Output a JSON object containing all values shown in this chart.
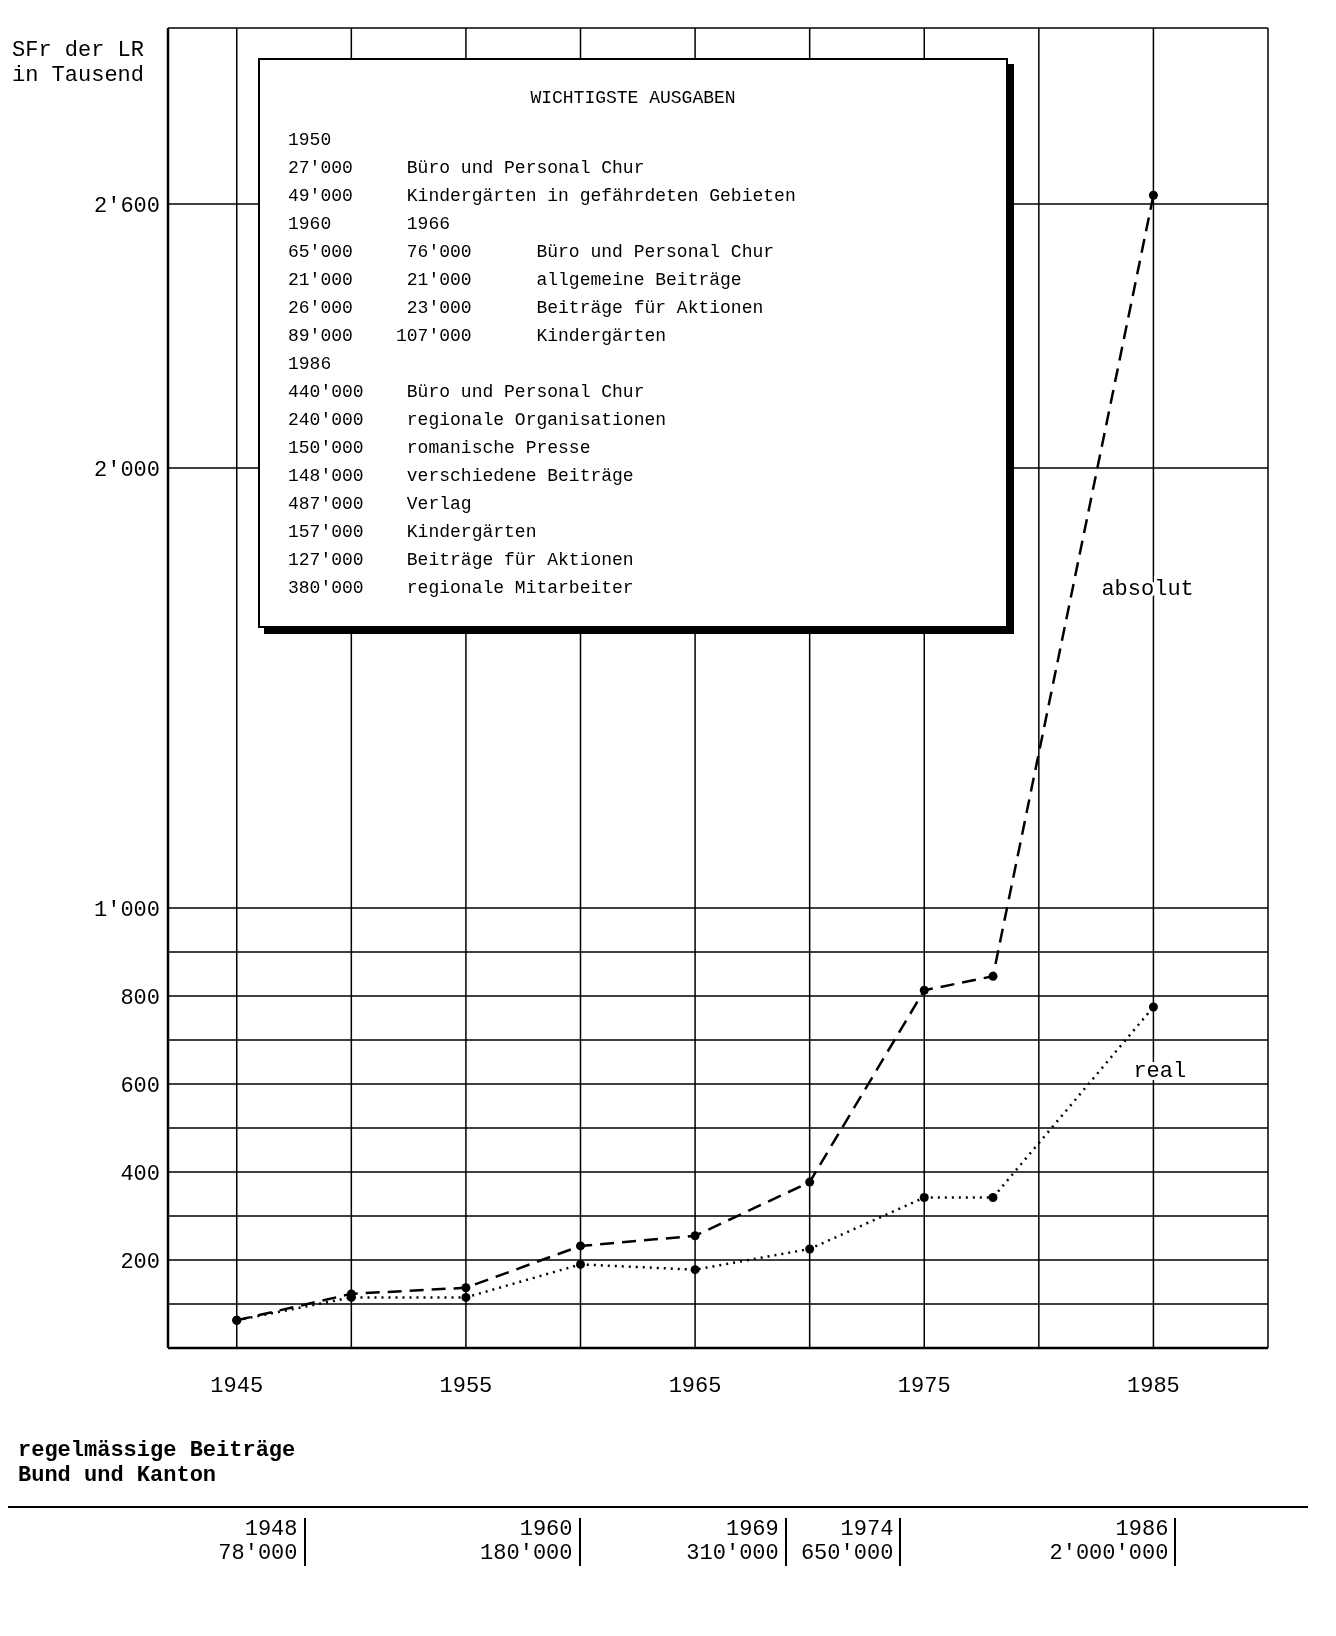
{
  "chart_data": {
    "type": "line",
    "ylabel": "SFr der LR\nin Tausend",
    "xlabel": "regelmässige Beiträge\nBund und Kanton",
    "x": [
      1945,
      1950,
      1955,
      1960,
      1965,
      1970,
      1975,
      1978,
      1985
    ],
    "series": [
      {
        "name": "absolut",
        "color": "#000000",
        "line_style": "dashed",
        "values": [
          63,
          123,
          137,
          232,
          255,
          377,
          813,
          845,
          2620
        ]
      },
      {
        "name": "real",
        "color": "#000000",
        "line_style": "dotted",
        "values": [
          63,
          115,
          115,
          190,
          178,
          225,
          342,
          342,
          775
        ]
      }
    ],
    "xlim": [
      1942,
      1990
    ],
    "xticks": [
      1945,
      {
        "value": 1950,
        "label": null
      },
      1955,
      {
        "value": 1960,
        "label": null
      },
      1965,
      {
        "value": 1970,
        "label": null
      },
      1975,
      {
        "value": 1980,
        "label": null
      },
      1985
    ],
    "ylim": [
      0,
      3000
    ],
    "yticks": [
      {
        "value": 100,
        "label": null
      },
      {
        "value": 200,
        "label": "200"
      },
      {
        "value": 300,
        "label": null
      },
      {
        "value": 400,
        "label": "400"
      },
      {
        "value": 500,
        "label": null
      },
      {
        "value": 600,
        "label": "600"
      },
      {
        "value": 700,
        "label": null
      },
      {
        "value": 800,
        "label": "800"
      },
      {
        "value": 900,
        "label": null
      },
      {
        "value": 1000,
        "label": "1'000"
      },
      {
        "value": 2000,
        "label": "2'000"
      },
      {
        "value": 2600,
        "label": "2'600"
      }
    ],
    "grid": true,
    "marker": "circle",
    "ref_lines": [
      {
        "axis": "x",
        "value": 1948,
        "label": "1948\n78'000"
      },
      {
        "axis": "x",
        "value": 1960,
        "label": "1960\n180'000"
      },
      {
        "axis": "x",
        "value": 1969,
        "label": "1969\n310'000"
      },
      {
        "axis": "x",
        "value": 1974,
        "label": "1974\n650'000"
      },
      {
        "axis": "x",
        "value": 1986,
        "label": "1986\n2'000'000"
      }
    ],
    "annotations": [
      "WICHTIGSTE AUSGABEN",
      "1950",
      "27'000     Büro und Personal Chur",
      "49'000     Kindergärten in gefährdeten Gebieten",
      "1960       1966",
      "65'000     76'000      Büro und Personal Chur",
      "21'000     21'000      allgemeine Beiträge",
      "26'000     23'000      Beiträge für Aktionen",
      "89'000    107'000      Kindergärten",
      "1986",
      "440'000    Büro und Personal Chur",
      "240'000    regionale Organisationen",
      "150'000    romanische Presse",
      "148'000    verschiedene Beiträge",
      "487'000    Verlag",
      "157'000    Kindergärten",
      "127'000    Beiträge für Aktionen",
      "380'000    regionale Mitarbeiter"
    ]
  }
}
